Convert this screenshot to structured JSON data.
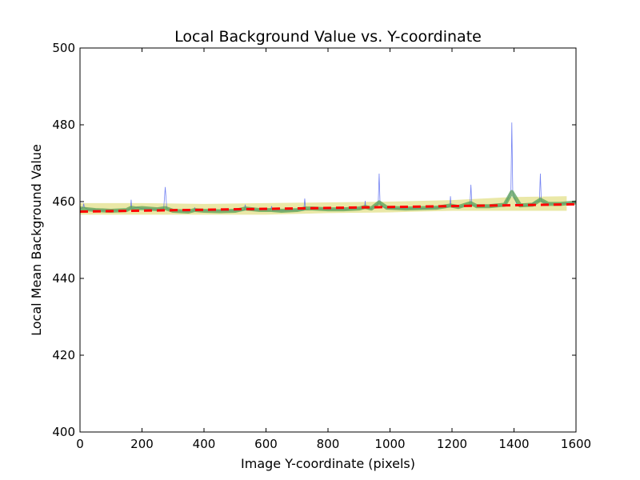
{
  "chart_data": {
    "type": "line",
    "title": "Local Background Value vs. Y-coordinate",
    "xlabel": "Image Y-coordinate (pixels)",
    "ylabel": "Local Mean Background Value",
    "xlim": [
      0,
      1600
    ],
    "ylim": [
      400,
      500
    ],
    "xticks": [
      "0",
      "200",
      "400",
      "600",
      "800",
      "1000",
      "1200",
      "1400",
      "1600"
    ],
    "yticks": [
      "400",
      "420",
      "440",
      "460",
      "480",
      "500"
    ],
    "grid": false,
    "legend": "none",
    "colors": {
      "raw": "#5a6cf0",
      "smoothed": "#5aa055",
      "band": "#e3e08a",
      "fit": "#ff0000"
    },
    "series": [
      {
        "role": "raw",
        "style": "thin-line",
        "x": [
          0,
          10,
          12,
          14,
          25,
          50,
          100,
          150,
          163,
          165,
          167,
          185,
          200,
          250,
          270,
          275,
          280,
          300,
          350,
          368,
          370,
          372,
          400,
          450,
          500,
          530,
          533,
          536,
          580,
          615,
          618,
          621,
          650,
          700,
          722,
          725,
          728,
          750,
          800,
          850,
          900,
          918,
          920,
          922,
          940,
          962,
          965,
          968,
          980,
          1000,
          1050,
          1100,
          1150,
          1193,
          1195,
          1197,
          1220,
          1258,
          1261,
          1264,
          1280,
          1320,
          1370,
          1390,
          1393,
          1396,
          1410,
          1440,
          1482,
          1485,
          1488,
          1510,
          1550,
          1600
        ],
        "y": [
          458,
          458.5,
          459.5,
          458.5,
          458,
          457.8,
          457.6,
          457.8,
          458.2,
          460.5,
          458.2,
          458.5,
          458.2,
          458,
          458.2,
          463.8,
          458.2,
          457.6,
          457.4,
          457.6,
          458.5,
          457.6,
          457.6,
          457.6,
          457.6,
          457.8,
          459.2,
          457.8,
          457.8,
          457.8,
          458.8,
          457.6,
          457.6,
          457.8,
          457.8,
          460.8,
          458,
          458.2,
          458,
          458,
          458.2,
          458.4,
          460.2,
          458.4,
          458.2,
          459.5,
          467.3,
          459.5,
          458.5,
          458.2,
          458.2,
          458.2,
          458.4,
          458.8,
          461.4,
          458.8,
          458.6,
          459.2,
          464.4,
          459.2,
          458.8,
          458.8,
          459,
          462.5,
          480.6,
          462.5,
          459,
          459,
          460.2,
          467.3,
          460.2,
          459.4,
          459.4,
          459.8
        ]
      },
      {
        "role": "smoothed",
        "style": "thick-line",
        "x": [
          0,
          25,
          50,
          100,
          150,
          165,
          180,
          200,
          250,
          275,
          300,
          350,
          370,
          400,
          450,
          500,
          533,
          580,
          618,
          650,
          700,
          725,
          750,
          800,
          850,
          900,
          920,
          940,
          965,
          990,
          1050,
          1100,
          1150,
          1195,
          1220,
          1260,
          1280,
          1320,
          1370,
          1393,
          1420,
          1460,
          1485,
          1510,
          1550,
          1600
        ],
        "y": [
          458.2,
          458,
          457.8,
          457.6,
          457.8,
          458.4,
          458.2,
          458.3,
          458,
          458.3,
          457.6,
          457.4,
          457.8,
          457.6,
          457.5,
          457.6,
          458.2,
          457.8,
          457.8,
          457.6,
          457.8,
          458.2,
          458.2,
          458,
          458,
          458.2,
          458.6,
          458.2,
          459.8,
          458.4,
          458.2,
          458.3,
          458.4,
          459,
          458.6,
          459.6,
          458.8,
          458.8,
          459.2,
          462.5,
          459,
          459.2,
          460.5,
          459.4,
          459.4,
          459.8
        ]
      },
      {
        "role": "fit",
        "style": "dashed-line",
        "x": [
          0,
          1600
        ],
        "y": [
          457.4,
          459.3
        ]
      }
    ],
    "band": {
      "x": [
        0,
        200,
        400,
        600,
        800,
        1000,
        1200,
        1400,
        1570
      ],
      "upper": [
        459.6,
        459.6,
        459.4,
        459.6,
        459.8,
        460.0,
        460.4,
        461.2,
        461.4
      ],
      "lower": [
        456.6,
        456.6,
        456.6,
        456.6,
        457.0,
        457.2,
        457.6,
        457.6,
        457.6
      ]
    }
  }
}
